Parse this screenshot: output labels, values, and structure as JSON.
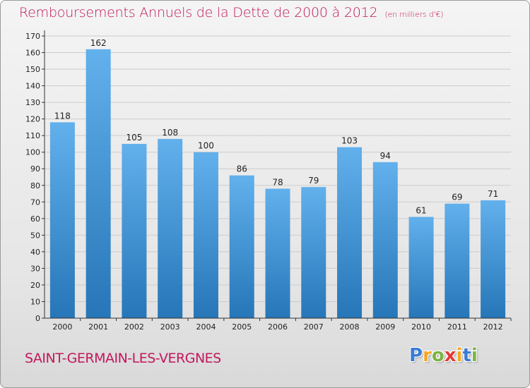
{
  "header": {
    "title": "Remboursements Annuels de la Dette de 2000 à 2012",
    "unit": "(en milliers d'€)"
  },
  "footer": {
    "commune": "SAINT-GERMAIN-LES-VERGNES",
    "logo_letters": [
      "P",
      "r",
      "o",
      "x",
      "i",
      "t",
      "i"
    ],
    "logo_colors": [
      "#3a7bd5",
      "#f5a623",
      "#7cb342",
      "#e53935",
      "#f5a623",
      "#3a7bd5",
      "#7cb342"
    ]
  },
  "colors": {
    "bar_top": "#62b0ec",
    "bar_bottom": "#2676b8",
    "grid": "#cccccc",
    "axis": "#333333"
  },
  "chart_data": {
    "type": "bar",
    "title": "Remboursements Annuels de la Dette de 2000 à 2012",
    "subtitle": "(en milliers d'€)",
    "xlabel": "",
    "ylabel": "",
    "categories": [
      "2000",
      "2001",
      "2002",
      "2003",
      "2004",
      "2005",
      "2006",
      "2007",
      "2008",
      "2009",
      "2010",
      "2011",
      "2012"
    ],
    "values": [
      118,
      162,
      105,
      108,
      100,
      86,
      78,
      79,
      103,
      94,
      61,
      69,
      71
    ],
    "data_labels": [
      "118",
      "162",
      "105",
      "108",
      "100",
      "86",
      "78",
      "79",
      "103",
      "94",
      "61",
      "69",
      "71"
    ],
    "ylim": [
      0,
      170
    ],
    "yticks": [
      0,
      10,
      20,
      30,
      40,
      50,
      60,
      70,
      80,
      90,
      100,
      110,
      120,
      130,
      140,
      150,
      160,
      170
    ],
    "grid": true,
    "legend": "none"
  }
}
